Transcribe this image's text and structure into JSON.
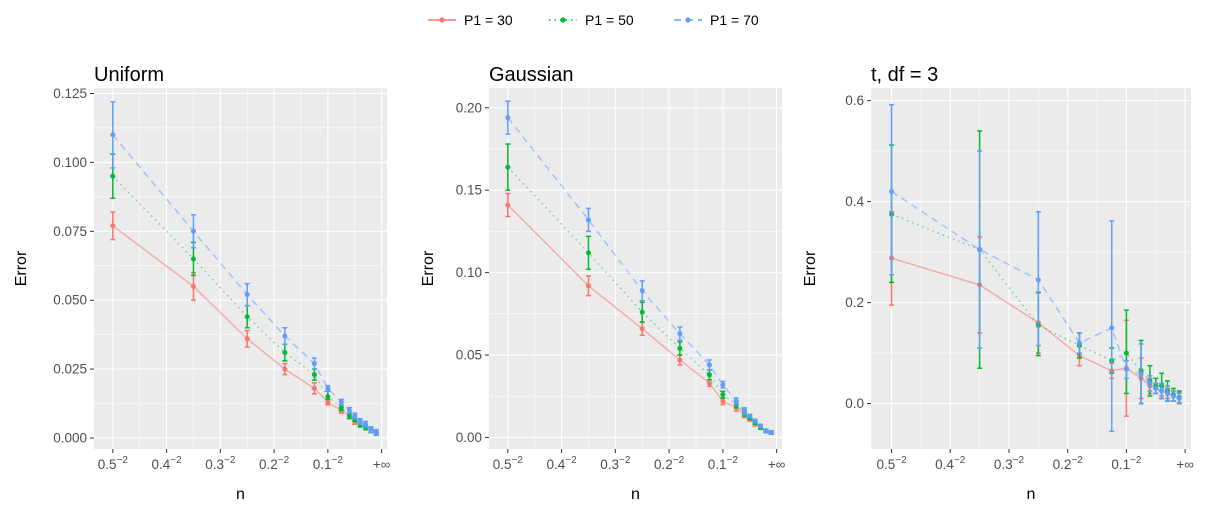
{
  "legend": {
    "position": "top",
    "entries": [
      {
        "label": "P1 = 30",
        "color": "#F8766D",
        "linetype": "solid"
      },
      {
        "label": "P1 = 50",
        "color": "#00BA38",
        "linetype": "dotted"
      },
      {
        "label": "P1 = 70",
        "color": "#619CFF",
        "linetype": "dashed"
      }
    ]
  },
  "chart_data": [
    {
      "type": "line",
      "title": "Uniform",
      "xlabel": "n",
      "ylabel": "Error",
      "grid": true,
      "x_ticks": [
        {
          "pos": 0.5,
          "base": "0.5",
          "exp": "−2"
        },
        {
          "pos": 0.4,
          "base": "0.4",
          "exp": "−2"
        },
        {
          "pos": 0.3,
          "base": "0.3",
          "exp": "−2"
        },
        {
          "pos": 0.2,
          "base": "0.2",
          "exp": "−2"
        },
        {
          "pos": 0.1,
          "base": "0.1",
          "exp": "−2"
        },
        {
          "pos": 0,
          "base": "+∞",
          "exp": ""
        }
      ],
      "xlim": [
        0.535,
        -0.01
      ],
      "y_ticks": [
        "0.000",
        "0.025",
        "0.050",
        "0.075",
        "0.100",
        "0.125"
      ],
      "ylim": [
        -0.004,
        0.127
      ],
      "series": [
        {
          "name": "P1 = 30",
          "x": [
            0.5,
            0.35,
            0.25,
            0.18,
            0.125,
            0.1,
            0.075,
            0.06,
            0.05,
            0.04,
            0.03,
            0.02,
            0.01
          ],
          "y": [
            0.077,
            0.055,
            0.036,
            0.025,
            0.018,
            0.013,
            0.01,
            0.008,
            0.006,
            0.005,
            0.004,
            0.003,
            0.002
          ],
          "lo": [
            0.072,
            0.05,
            0.033,
            0.023,
            0.016,
            0.012,
            0.009,
            0.007,
            0.005,
            0.004,
            0.003,
            0.002,
            0.001
          ],
          "hi": [
            0.082,
            0.06,
            0.039,
            0.027,
            0.02,
            0.014,
            0.011,
            0.009,
            0.007,
            0.006,
            0.005,
            0.004,
            0.003
          ]
        },
        {
          "name": "P1 = 50",
          "x": [
            0.5,
            0.35,
            0.25,
            0.18,
            0.125,
            0.1,
            0.075,
            0.06,
            0.05,
            0.04,
            0.03,
            0.02,
            0.01
          ],
          "y": [
            0.095,
            0.065,
            0.044,
            0.031,
            0.023,
            0.015,
            0.011,
            0.008,
            0.007,
            0.005,
            0.004,
            0.003,
            0.002
          ],
          "lo": [
            0.087,
            0.059,
            0.04,
            0.028,
            0.021,
            0.014,
            0.01,
            0.007,
            0.006,
            0.004,
            0.003,
            0.002,
            0.001
          ],
          "hi": [
            0.103,
            0.071,
            0.048,
            0.034,
            0.025,
            0.017,
            0.012,
            0.009,
            0.008,
            0.006,
            0.005,
            0.004,
            0.003
          ]
        },
        {
          "name": "P1 = 70",
          "x": [
            0.5,
            0.35,
            0.25,
            0.18,
            0.125,
            0.1,
            0.075,
            0.06,
            0.05,
            0.04,
            0.03,
            0.02,
            0.01
          ],
          "y": [
            0.11,
            0.075,
            0.052,
            0.037,
            0.027,
            0.018,
            0.013,
            0.01,
            0.008,
            0.006,
            0.005,
            0.003,
            0.002
          ],
          "lo": [
            0.098,
            0.069,
            0.048,
            0.034,
            0.025,
            0.017,
            0.012,
            0.009,
            0.007,
            0.005,
            0.004,
            0.002,
            0.001
          ],
          "hi": [
            0.122,
            0.081,
            0.056,
            0.04,
            0.029,
            0.019,
            0.014,
            0.011,
            0.009,
            0.007,
            0.006,
            0.004,
            0.003
          ]
        }
      ]
    },
    {
      "type": "line",
      "title": "Gaussian",
      "xlabel": "n",
      "ylabel": "Error",
      "grid": true,
      "x_ticks": [
        {
          "pos": 0.5,
          "base": "0.5",
          "exp": "−2"
        },
        {
          "pos": 0.4,
          "base": "0.4",
          "exp": "−2"
        },
        {
          "pos": 0.3,
          "base": "0.3",
          "exp": "−2"
        },
        {
          "pos": 0.2,
          "base": "0.2",
          "exp": "−2"
        },
        {
          "pos": 0.1,
          "base": "0.1",
          "exp": "−2"
        },
        {
          "pos": 0,
          "base": "+∞",
          "exp": ""
        }
      ],
      "xlim": [
        0.535,
        -0.01
      ],
      "y_ticks": [
        "0.00",
        "0.05",
        "0.10",
        "0.15",
        "0.20"
      ],
      "ylim": [
        -0.007,
        0.212
      ],
      "series": [
        {
          "name": "P1 = 30",
          "x": [
            0.5,
            0.35,
            0.25,
            0.18,
            0.125,
            0.1,
            0.075,
            0.06,
            0.05,
            0.04,
            0.03,
            0.02,
            0.01
          ],
          "y": [
            0.141,
            0.092,
            0.066,
            0.047,
            0.033,
            0.022,
            0.018,
            0.014,
            0.011,
            0.008,
            0.006,
            0.004,
            0.003
          ],
          "lo": [
            0.134,
            0.086,
            0.062,
            0.044,
            0.031,
            0.02,
            0.016,
            0.012,
            0.01,
            0.007,
            0.005,
            0.003,
            0.002
          ],
          "hi": [
            0.148,
            0.098,
            0.07,
            0.05,
            0.035,
            0.024,
            0.02,
            0.016,
            0.012,
            0.009,
            0.007,
            0.005,
            0.004
          ]
        },
        {
          "name": "P1 = 50",
          "x": [
            0.5,
            0.35,
            0.25,
            0.18,
            0.125,
            0.1,
            0.075,
            0.06,
            0.05,
            0.04,
            0.03,
            0.02,
            0.01
          ],
          "y": [
            0.164,
            0.112,
            0.076,
            0.054,
            0.038,
            0.026,
            0.02,
            0.015,
            0.012,
            0.009,
            0.006,
            0.004,
            0.003
          ],
          "lo": [
            0.15,
            0.102,
            0.07,
            0.05,
            0.035,
            0.024,
            0.018,
            0.013,
            0.011,
            0.008,
            0.005,
            0.003,
            0.002
          ],
          "hi": [
            0.178,
            0.122,
            0.082,
            0.058,
            0.041,
            0.028,
            0.022,
            0.017,
            0.013,
            0.01,
            0.007,
            0.005,
            0.004
          ]
        },
        {
          "name": "P1 = 70",
          "x": [
            0.5,
            0.35,
            0.25,
            0.18,
            0.125,
            0.1,
            0.075,
            0.06,
            0.05,
            0.04,
            0.03,
            0.02,
            0.01
          ],
          "y": [
            0.194,
            0.132,
            0.089,
            0.063,
            0.044,
            0.032,
            0.022,
            0.016,
            0.013,
            0.01,
            0.007,
            0.004,
            0.003
          ],
          "lo": [
            0.184,
            0.125,
            0.083,
            0.059,
            0.041,
            0.03,
            0.02,
            0.014,
            0.012,
            0.009,
            0.006,
            0.003,
            0.002
          ],
          "hi": [
            0.204,
            0.139,
            0.095,
            0.067,
            0.047,
            0.034,
            0.024,
            0.018,
            0.014,
            0.011,
            0.008,
            0.005,
            0.004
          ]
        }
      ]
    },
    {
      "type": "line",
      "title": "t, df = 3",
      "xlabel": "n",
      "ylabel": "Error",
      "grid": true,
      "x_ticks": [
        {
          "pos": 0.5,
          "base": "0.5",
          "exp": "−2"
        },
        {
          "pos": 0.4,
          "base": "0.4",
          "exp": "−2"
        },
        {
          "pos": 0.3,
          "base": "0.3",
          "exp": "−2"
        },
        {
          "pos": 0.2,
          "base": "0.2",
          "exp": "−2"
        },
        {
          "pos": 0.1,
          "base": "0.1",
          "exp": "−2"
        },
        {
          "pos": 0,
          "base": "+∞",
          "exp": ""
        }
      ],
      "xlim": [
        0.535,
        -0.01
      ],
      "y_ticks": [
        "0.0",
        "0.2",
        "0.4",
        "0.6"
      ],
      "ylim": [
        -0.09,
        0.625
      ],
      "series": [
        {
          "name": "P1 = 30",
          "x": [
            0.5,
            0.35,
            0.25,
            0.18,
            0.125,
            0.1,
            0.075,
            0.06,
            0.05,
            0.04,
            0.03,
            0.02,
            0.01
          ],
          "y": [
            0.288,
            0.235,
            0.16,
            0.095,
            0.065,
            0.07,
            0.05,
            0.035,
            0.03,
            0.025,
            0.02,
            0.015,
            0.012
          ],
          "lo": [
            0.195,
            0.14,
            0.1,
            0.075,
            0.05,
            -0.025,
            0.01,
            0.02,
            0.02,
            0.015,
            0.01,
            0.005,
            0.002
          ],
          "hi": [
            0.38,
            0.33,
            0.22,
            0.115,
            0.08,
            0.165,
            0.09,
            0.05,
            0.04,
            0.035,
            0.03,
            0.025,
            0.022
          ]
        },
        {
          "name": "P1 = 50",
          "x": [
            0.5,
            0.35,
            0.25,
            0.18,
            0.125,
            0.1,
            0.075,
            0.06,
            0.05,
            0.04,
            0.03,
            0.02,
            0.01
          ],
          "y": [
            0.375,
            0.305,
            0.155,
            0.115,
            0.085,
            0.1,
            0.065,
            0.045,
            0.035,
            0.035,
            0.025,
            0.018,
            0.012
          ],
          "lo": [
            0.24,
            0.07,
            0.095,
            0.09,
            0.06,
            0.02,
            0.0,
            0.015,
            0.02,
            0.01,
            0.005,
            0.005,
            0.0
          ],
          "hi": [
            0.512,
            0.54,
            0.22,
            0.14,
            0.11,
            0.185,
            0.125,
            0.075,
            0.05,
            0.06,
            0.045,
            0.03,
            0.025
          ]
        },
        {
          "name": "P1 = 70",
          "x": [
            0.5,
            0.35,
            0.25,
            0.18,
            0.125,
            0.1,
            0.075,
            0.06,
            0.05,
            0.04,
            0.03,
            0.02,
            0.01
          ],
          "y": [
            0.42,
            0.305,
            0.245,
            0.12,
            0.15,
            0.068,
            0.058,
            0.04,
            0.03,
            0.025,
            0.02,
            0.015,
            0.01
          ],
          "lo": [
            0.255,
            0.11,
            0.115,
            0.1,
            -0.055,
            0.05,
            0.0,
            0.025,
            0.02,
            0.01,
            0.005,
            0.005,
            0.0
          ],
          "hi": [
            0.592,
            0.5,
            0.38,
            0.14,
            0.362,
            0.085,
            0.118,
            0.055,
            0.04,
            0.04,
            0.035,
            0.025,
            0.02
          ]
        }
      ]
    }
  ]
}
